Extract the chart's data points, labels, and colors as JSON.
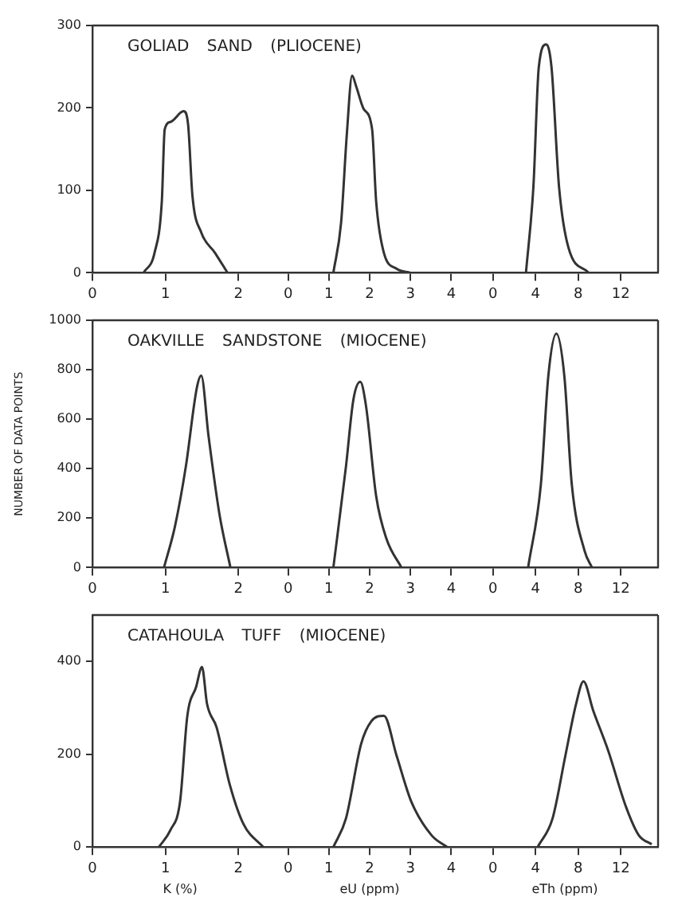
{
  "chart_data": [
    {
      "type": "line",
      "title": "GOLIAD SAND (PLIOCENE)",
      "x": [
        0.7,
        0.85,
        0.95,
        0.99,
        1.07,
        1.25,
        1.31,
        1.37,
        1.49,
        1.68,
        1.85
      ],
      "values": [
        0,
        24,
        86,
        174,
        183,
        196,
        180,
        93,
        49,
        24,
        0
      ],
      "color": "#333333",
      "xlim": [
        0,
        2.4
      ],
      "xticks": [
        0,
        1,
        2
      ],
      "ylim": [
        0,
        300
      ],
      "yticks": [
        0,
        100,
        200,
        300
      ],
      "marker": "none",
      "grid": false
    },
    {
      "type": "line",
      "x": [
        1.11,
        1.3,
        1.44,
        1.57,
        1.67,
        1.85,
        2.06,
        2.16,
        2.35,
        2.66,
        3.0
      ],
      "values": [
        0,
        61,
        168,
        239,
        226,
        199,
        174,
        86,
        24,
        5,
        0
      ],
      "color": "#333333",
      "xlim": [
        -0.5,
        4.5
      ],
      "xticks": [
        0,
        1,
        2,
        3,
        4
      ],
      "ylim": [
        0,
        300
      ],
      "marker": "none",
      "grid": false,
      "tick_labels": "x"
    },
    {
      "type": "line",
      "x": [
        3.1,
        3.8,
        4.3,
        5.0,
        5.5,
        6.2,
        7.1,
        9.0
      ],
      "values": [
        0,
        105,
        249,
        277,
        249,
        105,
        30,
        0
      ],
      "color": "#333333",
      "xlim": [
        -2,
        15.5
      ],
      "xticks": [
        0,
        4,
        8,
        12
      ],
      "ylim": [
        0,
        300
      ],
      "marker": "none",
      "grid": false,
      "tick_labels": "x"
    },
    {
      "type": "line",
      "title": "OAKVILLE SANDSTONE (MIOCENE)",
      "ylabel": "NUMBER OF DATA POINTS",
      "x": [
        0.98,
        1.13,
        1.28,
        1.43,
        1.49,
        1.59,
        1.74,
        1.89
      ],
      "values": [
        0,
        166,
        410,
        727,
        776,
        532,
        215,
        0
      ],
      "color": "#333333",
      "xlim": [
        0,
        2.4
      ],
      "xticks": [
        0,
        1,
        2
      ],
      "ylim": [
        0,
        1000
      ],
      "yticks": [
        0,
        200,
        400,
        600,
        800,
        1000
      ],
      "marker": "none",
      "grid": false
    },
    {
      "type": "line",
      "x": [
        1.11,
        1.42,
        1.6,
        1.77,
        1.91,
        2.16,
        2.41,
        2.78
      ],
      "values": [
        0,
        410,
        678,
        751,
        654,
        288,
        117,
        0
      ],
      "color": "#333333",
      "xlim": [
        -0.5,
        4.5
      ],
      "xticks": [
        0,
        1,
        2,
        3,
        4
      ],
      "ylim": [
        0,
        1000
      ],
      "marker": "none",
      "grid": false,
      "tick_labels": "x"
    },
    {
      "type": "line",
      "x": [
        3.3,
        4.5,
        5.2,
        5.95,
        6.7,
        7.4,
        8.6,
        9.3
      ],
      "values": [
        0,
        337,
        776,
        946,
        776,
        337,
        68,
        0
      ],
      "color": "#333333",
      "xlim": [
        -2,
        15.5
      ],
      "xticks": [
        0,
        4,
        8,
        12
      ],
      "ylim": [
        0,
        1000
      ],
      "marker": "none",
      "grid": false,
      "tick_labels": "x"
    },
    {
      "type": "line",
      "title": "CATAHOULA TUFF (MIOCENE)",
      "xlabel": "K (%)",
      "x": [
        0.91,
        1.07,
        1.2,
        1.3,
        1.42,
        1.5,
        1.57,
        1.7,
        1.88,
        2.07,
        2.34
      ],
      "values": [
        0,
        37,
        98,
        283,
        345,
        388,
        308,
        258,
        135,
        49,
        0
      ],
      "color": "#333333",
      "xlim": [
        0,
        2.4
      ],
      "xticks": [
        0,
        1,
        2
      ],
      "ylim": [
        0,
        500
      ],
      "yticks": [
        0,
        200,
        400
      ],
      "marker": "none",
      "grid": false
    },
    {
      "type": "line",
      "xlabel": "eU (ppm)",
      "x": [
        1.11,
        1.42,
        1.79,
        2.04,
        2.35,
        2.66,
        3.02,
        3.52,
        3.9
      ],
      "values": [
        0,
        62,
        222,
        271,
        283,
        197,
        98,
        25,
        0
      ],
      "color": "#333333",
      "xlim": [
        -0.5,
        4.5
      ],
      "xticks": [
        0,
        1,
        2,
        3,
        4
      ],
      "ylim": [
        0,
        500
      ],
      "marker": "none",
      "grid": false,
      "tick_labels": "x"
    },
    {
      "type": "line",
      "xlabel": "eTh (ppm)",
      "x": [
        4.2,
        5.6,
        6.8,
        7.8,
        8.5,
        9.4,
        10.8,
        12.5,
        13.7,
        14.9
      ],
      "values": [
        0,
        62,
        197,
        308,
        357,
        295,
        209,
        86,
        25,
        6
      ],
      "color": "#333333",
      "xlim": [
        -2,
        15.5
      ],
      "xticks": [
        0,
        4,
        8,
        12
      ],
      "ylim": [
        0,
        500
      ],
      "marker": "none",
      "grid": false,
      "tick_labels": "x"
    }
  ]
}
